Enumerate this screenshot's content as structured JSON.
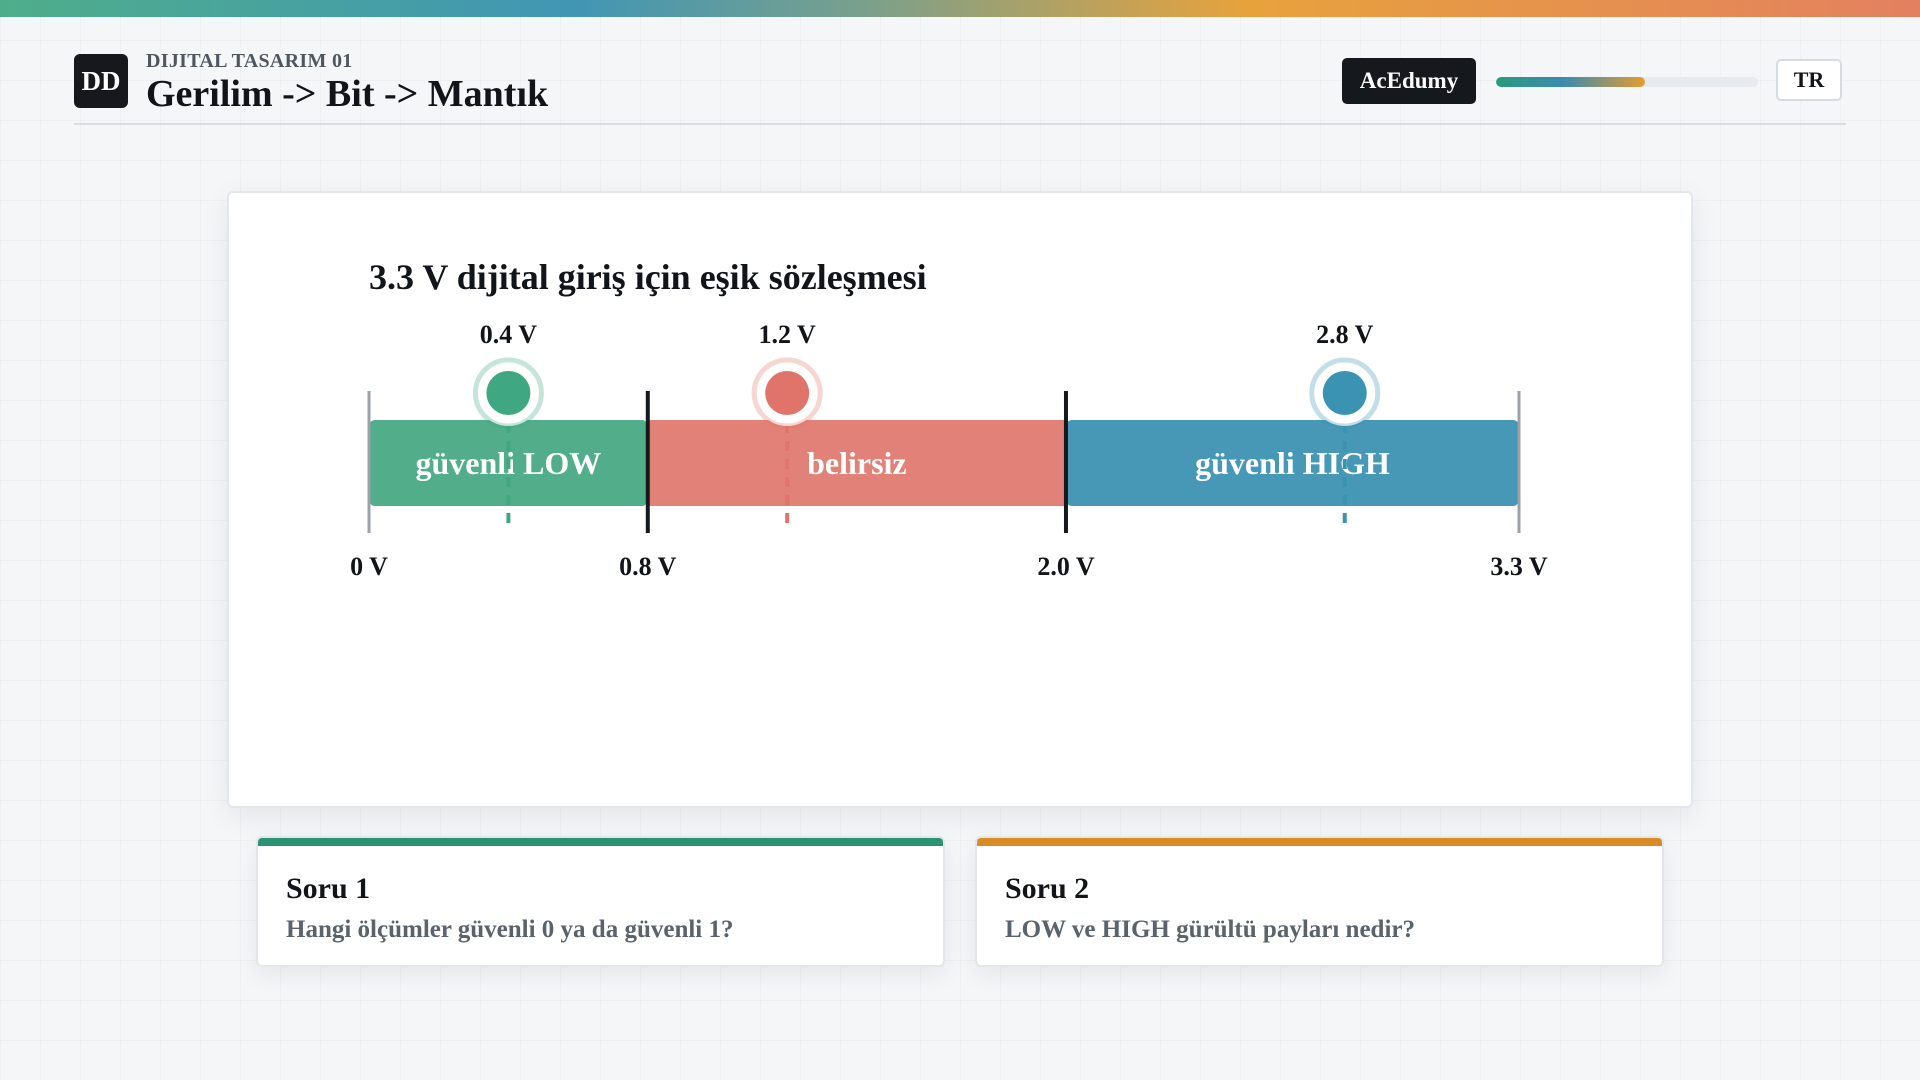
{
  "header": {
    "logo": "DD",
    "kicker": "DIJITAL TASARIM 01",
    "title": "Gerilim -> Bit -> Mantık",
    "brand": "AcEdumy",
    "progress": 0.57,
    "language": "TR"
  },
  "chart_data": {
    "type": "bar",
    "title": "3.3 V dijital giriş için eşik sözleşmesi",
    "unit": "V",
    "xlim": [
      0,
      3.3
    ],
    "regions": [
      {
        "label": "güvenli LOW",
        "from": 0,
        "to": 0.8,
        "color": "#52ae8a"
      },
      {
        "label": "belirsiz",
        "from": 0.8,
        "to": 2.0,
        "color": "#e18178"
      },
      {
        "label": "güvenli HIGH",
        "from": 2.0,
        "to": 3.3,
        "color": "#4698b6"
      }
    ],
    "ticks": [
      {
        "value": 0,
        "label": "0 V"
      },
      {
        "value": 0.8,
        "label": "0.8 V"
      },
      {
        "value": 2.0,
        "label": "2.0 V"
      },
      {
        "value": 3.3,
        "label": "3.3 V"
      }
    ],
    "markers": [
      {
        "value": 0.4,
        "label": "0.4 V",
        "color": "#3fa882"
      },
      {
        "value": 1.2,
        "label": "1.2 V",
        "color": "#e0746a"
      },
      {
        "value": 2.8,
        "label": "2.8 V",
        "color": "#3a93b2"
      }
    ]
  },
  "questions": [
    {
      "title": "Soru 1",
      "text": "Hangi ölçümler güvenli 0 ya da güvenli 1?",
      "color": "#2a9370"
    },
    {
      "title": "Soru 2",
      "text": "LOW ve HIGH gürültü payları nedir?",
      "color": "#d98c26"
    }
  ]
}
